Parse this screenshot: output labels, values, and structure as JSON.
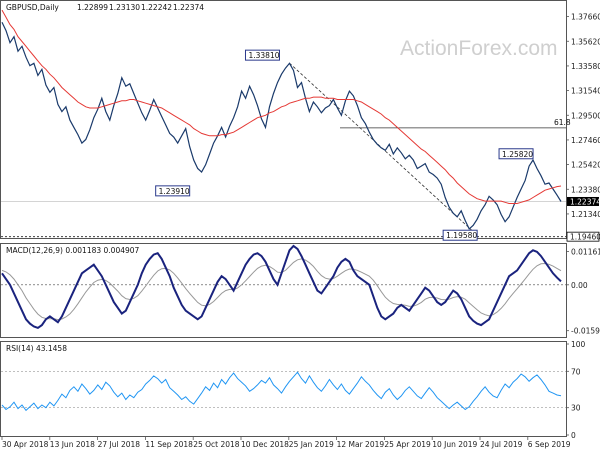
{
  "chart_data": [
    {
      "panel": "price",
      "type": "line",
      "title": "GBPUSD,Daily",
      "ohlc": [
        "1.22899",
        "1.23130",
        "1.22242",
        "1.22374"
      ],
      "watermark": "ActionForex.com",
      "x_ticks": [
        "30 Apr 2018",
        "13 Jun 2018",
        "27 Jul 2018",
        "11 Sep 2018",
        "25 Oct 2018",
        "10 Dec 2018",
        "25 Jan 2019",
        "12 Mar 2019",
        "25 Apr 2019",
        "10 Jun 2019",
        "24 Jul 2019",
        "6 Sep 2019"
      ],
      "y_ticks": [
        "1.37660",
        "1.35620",
        "1.33580",
        "1.31540",
        "1.29500",
        "1.27460",
        "1.25420",
        "1.23380",
        "1.21340"
      ],
      "ylim": [
        1.1935,
        1.3895
      ],
      "series": [
        {
          "values": [
            1.372,
            1.365,
            1.355,
            1.36,
            1.348,
            1.352,
            1.343,
            1.336,
            1.338,
            1.328,
            1.333,
            1.32,
            1.314,
            1.318,
            1.304,
            1.298,
            1.302,
            1.291,
            1.285,
            1.279,
            1.272,
            1.275,
            1.283,
            1.293,
            1.3,
            1.309,
            1.298,
            1.291,
            1.303,
            1.313,
            1.326,
            1.319,
            1.321,
            1.313,
            1.305,
            1.297,
            1.291,
            1.299,
            1.308,
            1.301,
            1.294,
            1.287,
            1.28,
            1.277,
            1.272,
            1.278,
            1.284,
            1.269,
            1.258,
            1.251,
            1.248,
            1.254,
            1.263,
            1.272,
            1.278,
            1.285,
            1.277,
            1.286,
            1.293,
            1.302,
            1.315,
            1.309,
            1.319,
            1.312,
            1.303,
            1.292,
            1.285,
            1.302,
            1.313,
            1.322,
            1.329,
            1.334,
            1.338,
            1.332,
            1.318,
            1.322,
            1.309,
            1.298,
            1.306,
            1.302,
            1.297,
            1.301,
            1.303,
            1.308,
            1.301,
            1.295,
            1.307,
            1.315,
            1.311,
            1.303,
            1.293,
            1.288,
            1.281,
            1.275,
            1.271,
            1.268,
            1.266,
            1.271,
            1.263,
            1.268,
            1.264,
            1.259,
            1.262,
            1.258,
            1.251,
            1.253,
            1.255,
            1.248,
            1.246,
            1.243,
            1.238,
            1.227,
            1.219,
            1.214,
            1.211,
            1.216,
            1.208,
            1.201,
            1.204,
            1.209,
            1.216,
            1.221,
            1.228,
            1.225,
            1.221,
            1.213,
            1.207,
            1.211,
            1.219,
            1.227,
            1.234,
            1.241,
            1.253,
            1.258,
            1.251,
            1.245,
            1.238,
            1.239,
            1.234,
            1.229,
            1.2237
          ]
        },
        {
          "values": [
            1.382,
            1.376,
            1.37,
            1.366,
            1.36,
            1.356,
            1.352,
            1.348,
            1.344,
            1.34,
            1.336,
            1.333,
            1.329,
            1.326,
            1.322,
            1.318,
            1.315,
            1.312,
            1.309,
            1.306,
            1.304,
            1.302,
            1.301,
            1.301,
            1.301,
            1.302,
            1.303,
            1.304,
            1.305,
            1.306,
            1.307,
            1.307,
            1.308,
            1.308,
            1.307,
            1.306,
            1.305,
            1.304,
            1.303,
            1.302,
            1.301,
            1.299,
            1.297,
            1.295,
            1.293,
            1.291,
            1.289,
            1.287,
            1.284,
            1.282,
            1.28,
            1.279,
            1.278,
            1.278,
            1.278,
            1.279,
            1.279,
            1.28,
            1.281,
            1.283,
            1.285,
            1.287,
            1.289,
            1.291,
            1.293,
            1.294,
            1.295,
            1.297,
            1.298,
            1.3,
            1.302,
            1.303,
            1.305,
            1.306,
            1.307,
            1.308,
            1.309,
            1.309,
            1.31,
            1.31,
            1.31,
            1.309,
            1.309,
            1.309,
            1.308,
            1.308,
            1.308,
            1.308,
            1.308,
            1.307,
            1.306,
            1.304,
            1.302,
            1.3,
            1.298,
            1.296,
            1.293,
            1.291,
            1.288,
            1.285,
            1.282,
            1.279,
            1.276,
            1.273,
            1.27,
            1.267,
            1.265,
            1.262,
            1.259,
            1.256,
            1.253,
            1.25,
            1.246,
            1.243,
            1.239,
            1.236,
            1.233,
            1.23,
            1.228,
            1.226,
            1.225,
            1.224,
            1.224,
            1.224,
            1.224,
            1.224,
            1.223,
            1.222,
            1.222,
            1.222,
            1.223,
            1.224,
            1.225,
            1.227,
            1.229,
            1.231,
            1.233,
            1.234,
            1.235,
            1.236,
            1.2365
          ]
        }
      ],
      "annotations": [
        {
          "text": "1.33810",
          "x_index": 72,
          "y": 1.3381
        },
        {
          "text": "1.23910",
          "x_index": 46,
          "y": 1.2391
        },
        {
          "text": "1.25820",
          "x_index": 133,
          "y": 1.2582
        },
        {
          "text": "1.19580",
          "x_index": 119,
          "y": 1.1958
        },
        {
          "text": "61.8",
          "y": 1.2846
        }
      ],
      "current_price": "1.22374",
      "low_line_label": "1.19460",
      "hlines": [
        1.2846,
        1.1946
      ]
    },
    {
      "panel": "macd",
      "type": "line",
      "title": "MACD(12,26,9) 0.001183 0.004907",
      "y_ticks": [
        "0.011619",
        "0.00",
        "-0.015949"
      ],
      "ylim": [
        -0.0178,
        0.0135
      ],
      "series": [
        {
          "values": [
            0.004,
            0.002,
            0.0,
            -0.003,
            -0.006,
            -0.009,
            -0.012,
            -0.0135,
            -0.0145,
            -0.015,
            -0.014,
            -0.012,
            -0.011,
            -0.012,
            -0.013,
            -0.011,
            -0.008,
            -0.005,
            -0.002,
            0.001,
            0.004,
            0.005,
            0.006,
            0.007,
            0.005,
            0.003,
            0.0,
            -0.003,
            -0.006,
            -0.008,
            -0.01,
            -0.009,
            -0.006,
            -0.003,
            0.0,
            0.004,
            0.007,
            0.009,
            0.0105,
            0.011,
            0.009,
            0.006,
            0.003,
            -0.001,
            -0.004,
            -0.007,
            -0.009,
            -0.01,
            -0.011,
            -0.012,
            -0.011,
            -0.008,
            -0.005,
            -0.002,
            0.001,
            0.003,
            0.002,
            0.0,
            -0.002,
            0.001,
            0.004,
            0.007,
            0.009,
            0.0105,
            0.011,
            0.01,
            0.008,
            0.005,
            0.002,
            0.0,
            0.004,
            0.008,
            0.012,
            0.0135,
            0.0125,
            0.01,
            0.007,
            0.004,
            0.001,
            -0.002,
            -0.003,
            -0.001,
            0.001,
            0.003,
            0.006,
            0.008,
            0.009,
            0.008,
            0.005,
            0.003,
            0.002,
            0.001,
            0.0,
            -0.004,
            -0.008,
            -0.011,
            -0.012,
            -0.011,
            -0.01,
            -0.008,
            -0.007,
            -0.008,
            -0.009,
            -0.007,
            -0.005,
            -0.003,
            -0.001,
            -0.002,
            -0.004,
            -0.006,
            -0.007,
            -0.006,
            -0.004,
            -0.002,
            -0.003,
            -0.005,
            -0.008,
            -0.011,
            -0.0125,
            -0.0135,
            -0.014,
            -0.013,
            -0.012,
            -0.009,
            -0.006,
            -0.003,
            0.0,
            0.003,
            0.004,
            0.005,
            0.007,
            0.009,
            0.011,
            0.012,
            0.0115,
            0.01,
            0.008,
            0.006,
            0.004,
            0.0025,
            0.0012
          ]
        },
        {
          "values": [
            0.005,
            0.0045,
            0.0035,
            0.002,
            0.0,
            -0.002,
            -0.0045,
            -0.0065,
            -0.0085,
            -0.0102,
            -0.0113,
            -0.0117,
            -0.0118,
            -0.0118,
            -0.0121,
            -0.0119,
            -0.0112,
            -0.0101,
            -0.0085,
            -0.0066,
            -0.0045,
            -0.0025,
            -0.0008,
            0.0008,
            0.0016,
            0.0019,
            0.0015,
            0.0006,
            -0.0008,
            -0.0022,
            -0.0038,
            -0.0048,
            -0.0051,
            -0.0047,
            -0.0038,
            -0.0022,
            -0.0004,
            0.0015,
            0.0033,
            0.0048,
            0.0056,
            0.0057,
            0.0052,
            0.004,
            0.0024,
            0.0006,
            -0.0013,
            -0.003,
            -0.0046,
            -0.0061,
            -0.0071,
            -0.0073,
            -0.0068,
            -0.0058,
            -0.0044,
            -0.003,
            -0.002,
            -0.0016,
            -0.0017,
            -0.0011,
            0.0,
            0.0014,
            0.0029,
            0.0044,
            0.0057,
            0.0065,
            0.0068,
            0.0064,
            0.0055,
            0.0044,
            0.0043,
            0.005,
            0.0064,
            0.0078,
            0.0087,
            0.009,
            0.0086,
            0.0077,
            0.0064,
            0.0047,
            0.0032,
            0.0023,
            0.002,
            0.0022,
            0.003,
            0.004,
            0.0049,
            0.0055,
            0.0054,
            0.005,
            0.0044,
            0.0037,
            0.003,
            0.0016,
            -0.0003,
            -0.0024,
            -0.0043,
            -0.0056,
            -0.0065,
            -0.0068,
            -0.0069,
            -0.0071,
            -0.0075,
            -0.0074,
            -0.0069,
            -0.0061,
            -0.005,
            -0.0044,
            -0.0043,
            -0.0046,
            -0.0051,
            -0.0052,
            -0.005,
            -0.0044,
            -0.0041,
            -0.0043,
            -0.005,
            -0.0063,
            -0.0075,
            -0.0087,
            -0.0098,
            -0.0104,
            -0.0108,
            -0.0104,
            -0.0095,
            -0.0082,
            -0.0066,
            -0.0047,
            -0.003,
            -0.0014,
            0.0003,
            0.002,
            0.0038,
            0.0054,
            0.0066,
            0.0073,
            0.0074,
            0.0071,
            0.0065,
            0.0057,
            0.0049
          ]
        }
      ]
    },
    {
      "panel": "rsi",
      "type": "line",
      "title": "RSI(14) 43.1458",
      "y_ticks": [
        "100",
        "70",
        "30",
        "0"
      ],
      "ylim": [
        0,
        100
      ],
      "levels": [
        70,
        30
      ],
      "series": [
        {
          "values": [
            33,
            28,
            31,
            36,
            29,
            33,
            27,
            31,
            35,
            29,
            33,
            30,
            36,
            32,
            38,
            45,
            41,
            49,
            53,
            48,
            56,
            51,
            45,
            49,
            55,
            50,
            58,
            54,
            47,
            42,
            46,
            39,
            44,
            41,
            47,
            50,
            56,
            60,
            65,
            62,
            57,
            61,
            52,
            48,
            44,
            39,
            42,
            37,
            34,
            40,
            46,
            53,
            49,
            57,
            52,
            61,
            56,
            63,
            68,
            62,
            58,
            54,
            48,
            51,
            55,
            60,
            57,
            63,
            55,
            51,
            46,
            53,
            59,
            64,
            69,
            62,
            57,
            65,
            58,
            52,
            48,
            54,
            61,
            55,
            50,
            56,
            49,
            45,
            51,
            57,
            64,
            59,
            55,
            49,
            44,
            40,
            47,
            51,
            44,
            39,
            43,
            49,
            53,
            48,
            43,
            40,
            46,
            52,
            47,
            41,
            37,
            33,
            29,
            33,
            36,
            32,
            28,
            31,
            37,
            42,
            48,
            53,
            47,
            43,
            41,
            49,
            56,
            52,
            58,
            62,
            67,
            64,
            59,
            63,
            66,
            61,
            55,
            48,
            46,
            44,
            43.1
          ]
        }
      ]
    }
  ]
}
